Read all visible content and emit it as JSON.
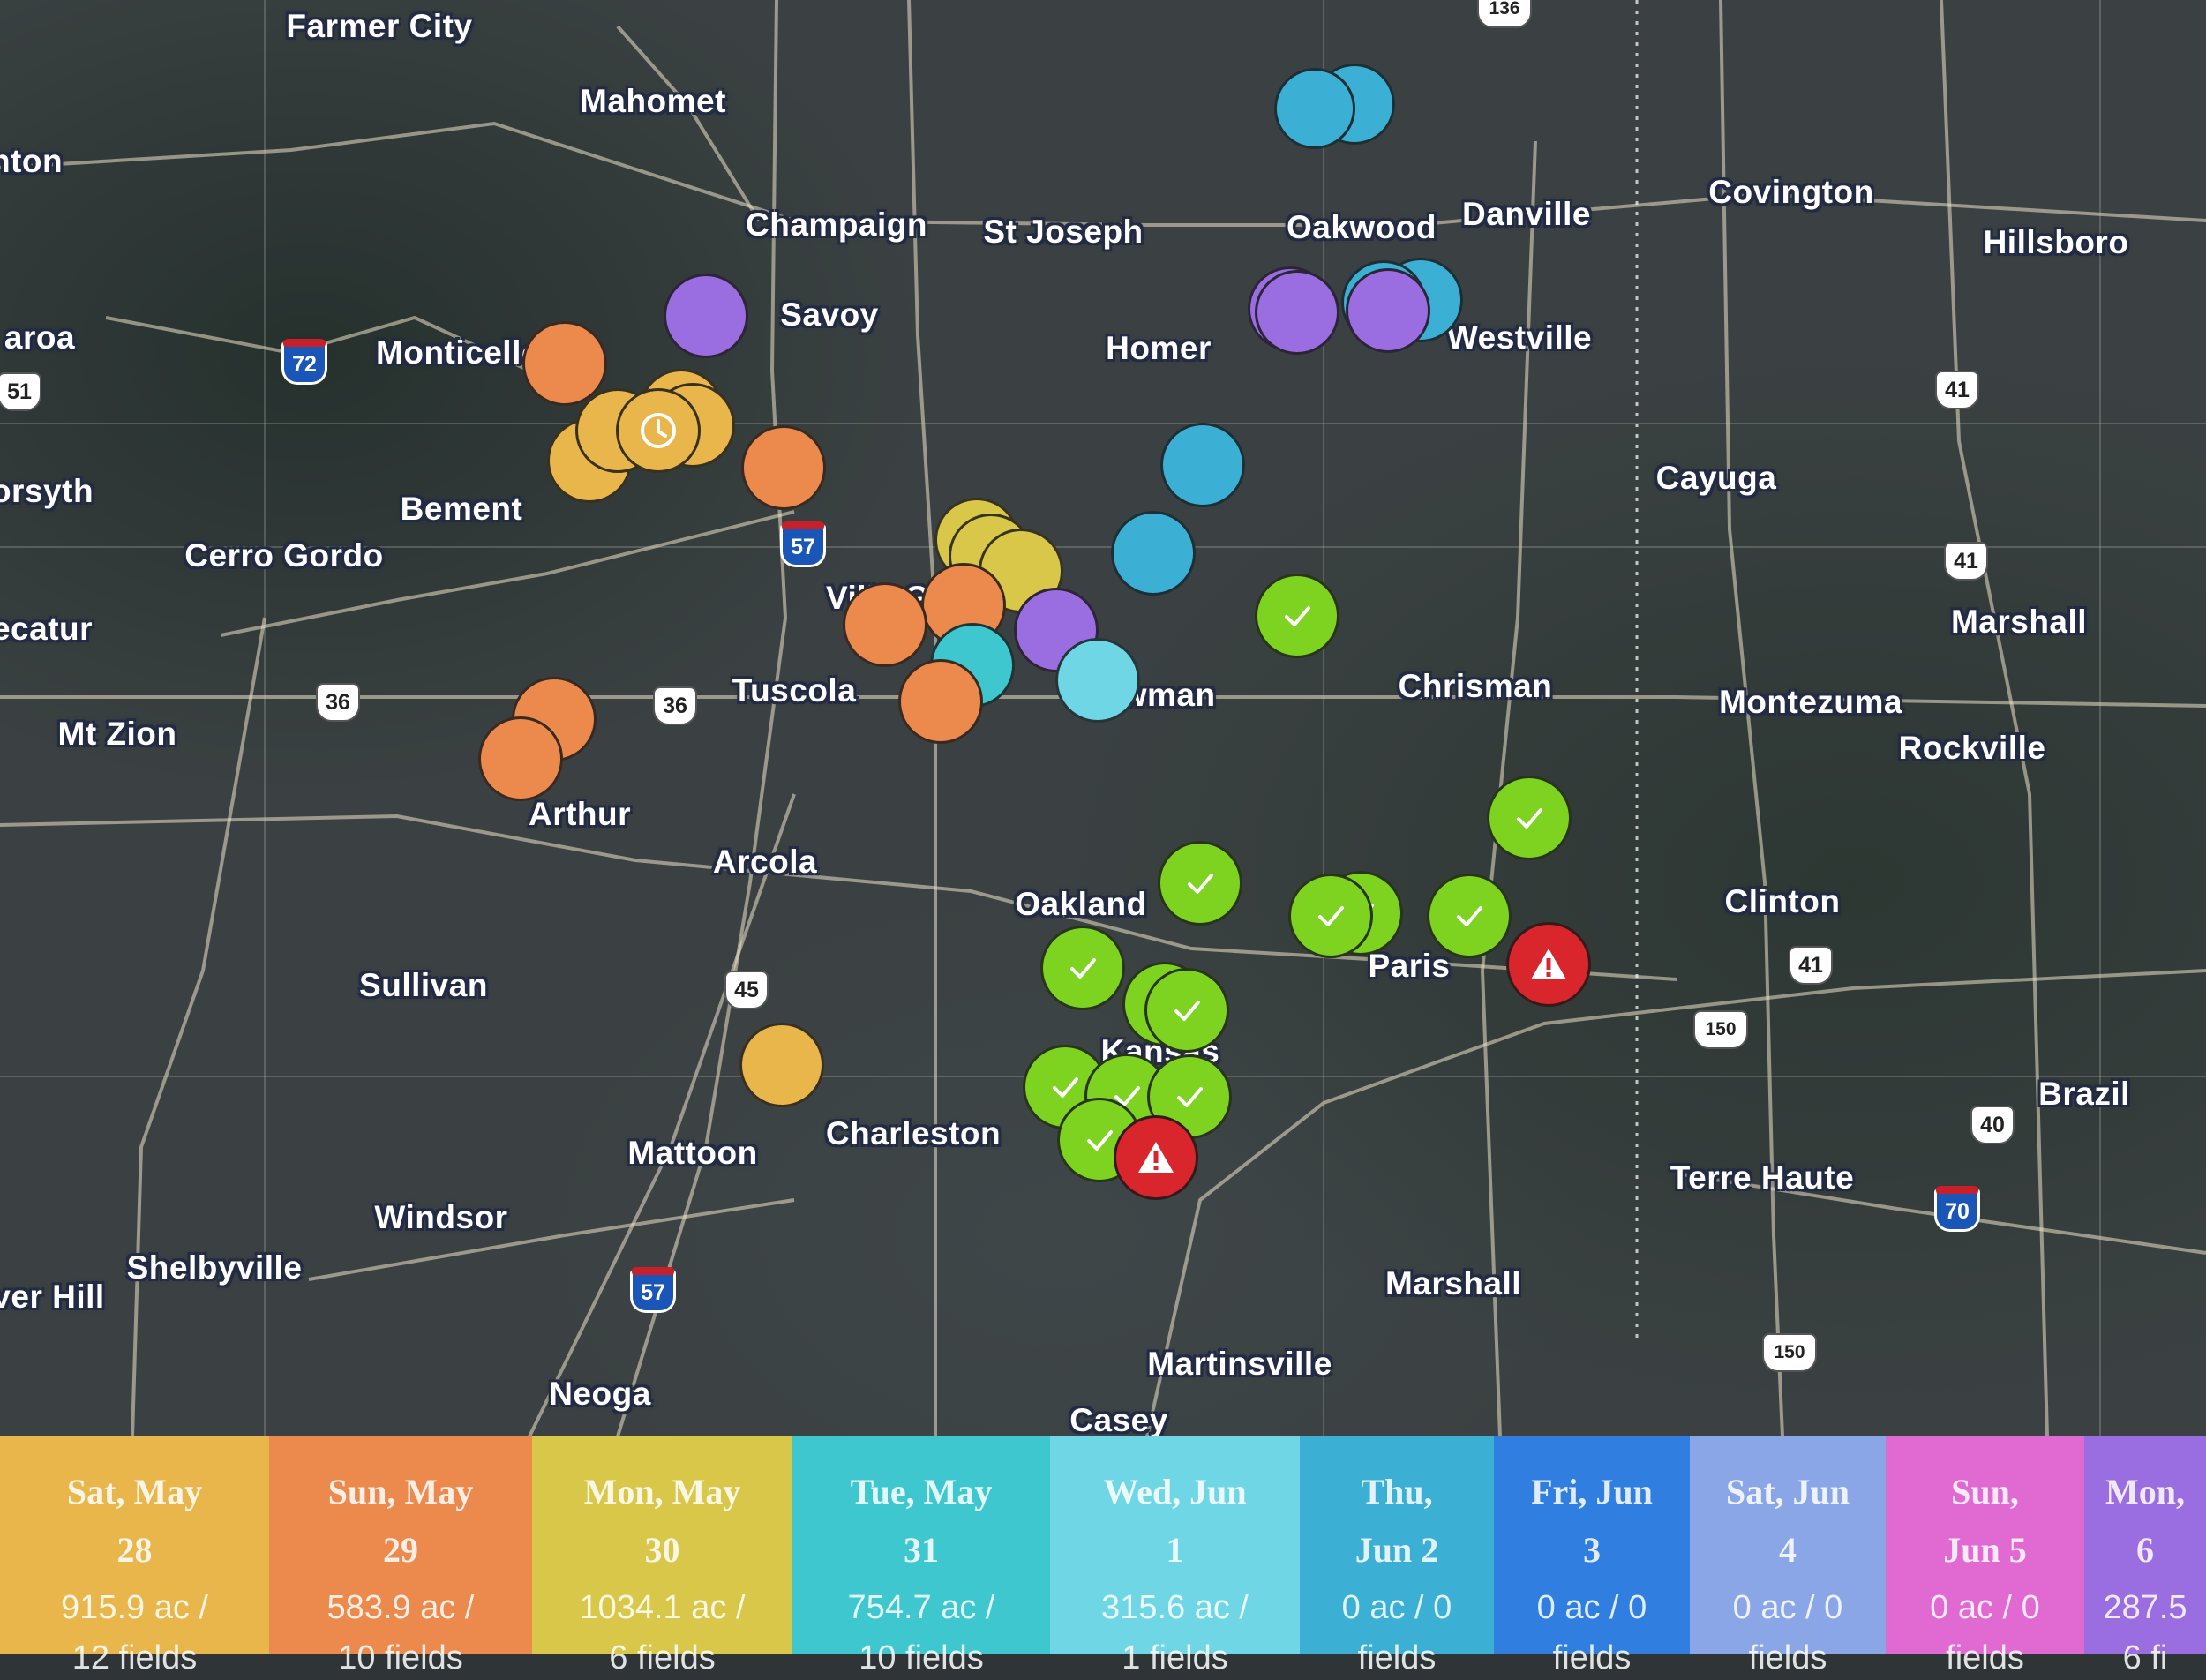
{
  "map": {
    "cities": [
      {
        "id": "farmer-city",
        "label": "Farmer City"
      },
      {
        "id": "mahomet",
        "label": "Mahomet"
      },
      {
        "id": "champaign",
        "label": "Champaign"
      },
      {
        "id": "st-joseph",
        "label": "St Joseph"
      },
      {
        "id": "oakwood",
        "label": "Oakwood"
      },
      {
        "id": "danville",
        "label": "Danville"
      },
      {
        "id": "covington",
        "label": "Covington"
      },
      {
        "id": "hillsboro",
        "label": "Hillsboro"
      },
      {
        "id": "savoy",
        "label": "Savoy"
      },
      {
        "id": "homer",
        "label": "Homer"
      },
      {
        "id": "westville",
        "label": "Westville"
      },
      {
        "id": "monticello",
        "label": "Monticello"
      },
      {
        "id": "bement",
        "label": "Bement"
      },
      {
        "id": "cerro-gordo",
        "label": "Cerro Gordo"
      },
      {
        "id": "cayuga",
        "label": "Cayuga"
      },
      {
        "id": "marshall-in",
        "label": "Marshall"
      },
      {
        "id": "tuscola",
        "label": "Tuscola"
      },
      {
        "id": "newman",
        "label": "Newman"
      },
      {
        "id": "chrisman",
        "label": "Chrisman"
      },
      {
        "id": "montezuma",
        "label": "Montezuma"
      },
      {
        "id": "rockville",
        "label": "Rockville"
      },
      {
        "id": "mt-zion",
        "label": "Mt Zion"
      },
      {
        "id": "arthur",
        "label": "Arthur"
      },
      {
        "id": "arcola",
        "label": "Arcola"
      },
      {
        "id": "oakland",
        "label": "Oakland"
      },
      {
        "id": "clinton",
        "label": "Clinton"
      },
      {
        "id": "sullivan",
        "label": "Sullivan"
      },
      {
        "id": "paris",
        "label": "Paris"
      },
      {
        "id": "brazil",
        "label": "Brazil"
      },
      {
        "id": "mattoon",
        "label": "Mattoon"
      },
      {
        "id": "charleston",
        "label": "Charleston"
      },
      {
        "id": "terre-haute",
        "label": "Terre Haute"
      },
      {
        "id": "windsor",
        "label": "Windsor"
      },
      {
        "id": "shelbyville",
        "label": "Shelbyville"
      },
      {
        "id": "marshall-il",
        "label": "Marshall"
      },
      {
        "id": "martinsville",
        "label": "Martinsville"
      },
      {
        "id": "neoga",
        "label": "Neoga"
      },
      {
        "id": "casey",
        "label": "Casey"
      },
      {
        "id": "forsyth",
        "label": "orsyth"
      },
      {
        "id": "decatur",
        "label": "ecatur"
      },
      {
        "id": "maroa",
        "label": "aroa"
      },
      {
        "id": "clinton-il",
        "label": "nton"
      },
      {
        "id": "silver-hill",
        "label": "ver Hill"
      },
      {
        "id": "kansas",
        "label": "Kansas"
      },
      {
        "id": "villa-grove",
        "label": "Villa G"
      }
    ],
    "shields": [
      {
        "id": "us-136",
        "label": "136",
        "type": "us"
      },
      {
        "id": "i-72",
        "label": "72",
        "type": "interstate"
      },
      {
        "id": "us-51",
        "label": "51",
        "type": "us"
      },
      {
        "id": "i-57-north",
        "label": "57",
        "type": "interstate"
      },
      {
        "id": "us-36-west",
        "label": "36",
        "type": "us"
      },
      {
        "id": "us-36-east",
        "label": "36",
        "type": "us"
      },
      {
        "id": "us-45",
        "label": "45",
        "type": "us"
      },
      {
        "id": "i-57-south",
        "label": "57",
        "type": "interstate"
      },
      {
        "id": "us-41-north",
        "label": "41",
        "type": "us"
      },
      {
        "id": "us-41-mid",
        "label": "41",
        "type": "us"
      },
      {
        "id": "us-41-south",
        "label": "41",
        "type": "us"
      },
      {
        "id": "us-150-east",
        "label": "150",
        "type": "us"
      },
      {
        "id": "us-40",
        "label": "40",
        "type": "us"
      },
      {
        "id": "i-70",
        "label": "70",
        "type": "interstate"
      },
      {
        "id": "us-150-south",
        "label": "150",
        "type": "us"
      }
    ],
    "colors": {
      "sat_may_28": "#e8b64a",
      "sun_may_29": "#ec8a4e",
      "mon_may_30": "#d9c74a",
      "tue_may_31": "#3fc7cf",
      "wed_jun_1": "#6fd6e6",
      "thu_jun_2": "#3bb0d4",
      "mon_jun_6": "#9a6ee0",
      "complete": "#7ed321",
      "alert": "#d9262c"
    },
    "markers": [
      {
        "id": "m1",
        "color": "#3bb0d4",
        "icon": ""
      },
      {
        "id": "m2",
        "color": "#3bb0d4",
        "icon": ""
      },
      {
        "id": "m3",
        "color": "#9a6ee0",
        "icon": ""
      },
      {
        "id": "m4",
        "color": "#9a6ee0",
        "icon": ""
      },
      {
        "id": "m5",
        "color": "#9a6ee0",
        "icon": ""
      },
      {
        "id": "m6",
        "color": "#3bb0d4",
        "icon": ""
      },
      {
        "id": "m7",
        "color": "#3bb0d4",
        "icon": ""
      },
      {
        "id": "m8",
        "color": "#9a6ee0",
        "icon": ""
      },
      {
        "id": "m9",
        "color": "#ec8a4e",
        "icon": ""
      },
      {
        "id": "m10",
        "color": "#e8b64a",
        "icon": ""
      },
      {
        "id": "m11",
        "color": "#e8b64a",
        "icon": ""
      },
      {
        "id": "m12",
        "color": "#e8b64a",
        "icon": ""
      },
      {
        "id": "m13",
        "color": "#e8b64a",
        "icon": ""
      },
      {
        "id": "m14",
        "color": "#e8b64a",
        "icon": "clock-icon"
      },
      {
        "id": "m15",
        "color": "#ec8a4e",
        "icon": ""
      },
      {
        "id": "m16",
        "color": "#3bb0d4",
        "icon": ""
      },
      {
        "id": "m17",
        "color": "#3bb0d4",
        "icon": ""
      },
      {
        "id": "m18",
        "color": "#d9c74a",
        "icon": ""
      },
      {
        "id": "m19",
        "color": "#d9c74a",
        "icon": ""
      },
      {
        "id": "m20",
        "color": "#d9c74a",
        "icon": ""
      },
      {
        "id": "m21",
        "color": "#ec8a4e",
        "icon": ""
      },
      {
        "id": "m22",
        "color": "#ec8a4e",
        "icon": ""
      },
      {
        "id": "m23",
        "color": "#9a6ee0",
        "icon": ""
      },
      {
        "id": "m24",
        "color": "#3fc7cf",
        "icon": ""
      },
      {
        "id": "m25",
        "color": "#ec8a4e",
        "icon": ""
      },
      {
        "id": "m26",
        "color": "#6fd6e6",
        "icon": ""
      },
      {
        "id": "m27",
        "color": "#7ed321",
        "icon": "check-icon"
      },
      {
        "id": "m28",
        "color": "#ec8a4e",
        "icon": ""
      },
      {
        "id": "m29",
        "color": "#ec8a4e",
        "icon": ""
      },
      {
        "id": "m30",
        "color": "#7ed321",
        "icon": "check-icon"
      },
      {
        "id": "m31",
        "color": "#7ed321",
        "icon": "check-icon"
      },
      {
        "id": "m32",
        "color": "#7ed321",
        "icon": "check-icon"
      },
      {
        "id": "m33",
        "color": "#7ed321",
        "icon": "check-icon"
      },
      {
        "id": "m34",
        "color": "#7ed321",
        "icon": "check-icon"
      },
      {
        "id": "m35",
        "color": "#d9262c",
        "icon": "warning-icon"
      },
      {
        "id": "m36",
        "color": "#7ed321",
        "icon": "check-icon"
      },
      {
        "id": "m37",
        "color": "#7ed321",
        "icon": "check-icon"
      },
      {
        "id": "m38",
        "color": "#7ed321",
        "icon": "check-icon"
      },
      {
        "id": "m39",
        "color": "#e8b64a",
        "icon": ""
      },
      {
        "id": "m40",
        "color": "#7ed321",
        "icon": "check-icon"
      },
      {
        "id": "m41",
        "color": "#7ed321",
        "icon": "check-icon"
      },
      {
        "id": "m42",
        "color": "#7ed321",
        "icon": "check-icon"
      },
      {
        "id": "m43",
        "color": "#7ed321",
        "icon": "check-icon"
      },
      {
        "id": "m44",
        "color": "#d9262c",
        "icon": "warning-icon"
      }
    ]
  },
  "legend": {
    "days": [
      {
        "id": "sat-may-28",
        "line1": "Sat, May",
        "line2": "28",
        "line3": "915.9 ac /",
        "line4": "12 fields",
        "color": "#e8b64a"
      },
      {
        "id": "sun-may-29",
        "line1": "Sun, May",
        "line2": "29",
        "line3": "583.9 ac /",
        "line4": "10 fields",
        "color": "#ec8a4e"
      },
      {
        "id": "mon-may-30",
        "line1": "Mon, May",
        "line2": "30",
        "line3": "1034.1 ac /",
        "line4": "6 fields",
        "color": "#d9c74a"
      },
      {
        "id": "tue-may-31",
        "line1": "Tue, May",
        "line2": "31",
        "line3": "754.7 ac /",
        "line4": "10 fields",
        "color": "#3fc7cf"
      },
      {
        "id": "wed-jun-1",
        "line1": "Wed, Jun",
        "line2": "1",
        "line3": "315.6 ac /",
        "line4": "1 fields",
        "color": "#6fd6e6"
      },
      {
        "id": "thu-jun-2",
        "line1": "Thu,",
        "line2": "Jun 2",
        "line3": "0 ac / 0",
        "line4": "fields",
        "color": "#3bb0d4"
      },
      {
        "id": "fri-jun-3",
        "line1": "Fri, Jun",
        "line2": "3",
        "line3": "0 ac / 0",
        "line4": "fields",
        "color": "#2f7ee0"
      },
      {
        "id": "sat-jun-4",
        "line1": "Sat, Jun",
        "line2": "4",
        "line3": "0 ac / 0",
        "line4": "fields",
        "color": "#8aa6e6"
      },
      {
        "id": "sun-jun-5",
        "line1": "Sun,",
        "line2": "Jun 5",
        "line3": "0 ac / 0",
        "line4": "fields",
        "color": "#e06ad2"
      },
      {
        "id": "mon-jun-6",
        "line1": "Mon,",
        "line2": "6",
        "line3": "287.5",
        "line4": "6 fi",
        "color": "#9a6ee0"
      }
    ]
  }
}
